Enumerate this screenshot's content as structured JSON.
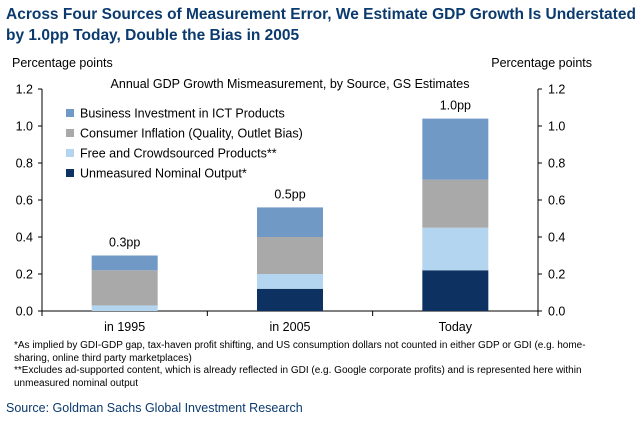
{
  "title": "Across Four Sources of Measurement Error, We Estimate GDP Growth Is Understated by 1.0pp Today, Double the Bias in 2005",
  "left_unit": "Percentage points",
  "right_unit": "Percentage points",
  "footnotes": [
    "*As implied by GDI-GDP gap, tax-haven profit shifting, and US consumption dollars not counted in either GDP or GDI (e.g. home-sharing, online third party marketplaces)",
    "**Excludes ad-supported content, which is already reflected in GDI (e.g. Google corporate profits) and is represented here within unmeasured nominal output"
  ],
  "source": "Source: Goldman Sachs Global Investment Research",
  "chart_data": {
    "type": "bar",
    "stacked": true,
    "subtitle": "Annual GDP Growth Mismeasurement, by Source, GS Estimates",
    "categories": [
      "in 1995",
      "in 2005",
      "Today"
    ],
    "series": [
      {
        "name": "Unmeasured Nominal Output*",
        "color": "#0d3160",
        "values": [
          0.0,
          0.12,
          0.22
        ]
      },
      {
        "name": "Free and Crowdsourced Products**",
        "color": "#b3d5f0",
        "values": [
          0.03,
          0.08,
          0.23
        ]
      },
      {
        "name": "Consumer Inflation (Quality, Outlet Bias)",
        "color": "#a9a9a9",
        "values": [
          0.19,
          0.2,
          0.26
        ]
      },
      {
        "name": "Business Investment in ICT Products",
        "color": "#7199c6",
        "values": [
          0.08,
          0.16,
          0.33
        ]
      }
    ],
    "legend_order": [
      3,
      2,
      1,
      0
    ],
    "totals_labels": [
      "0.3pp",
      "0.5pp",
      "1.0pp"
    ],
    "ylim": [
      0,
      1.2
    ],
    "yticks": [
      "0.0",
      "0.2",
      "0.4",
      "0.6",
      "0.8",
      "1.0",
      "1.2"
    ],
    "grid": false,
    "legend_position": "top-left"
  }
}
